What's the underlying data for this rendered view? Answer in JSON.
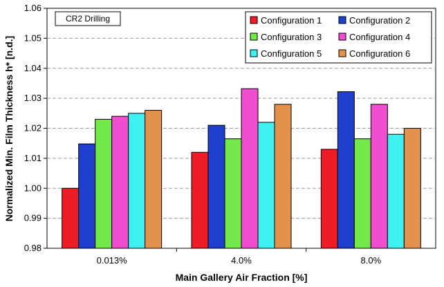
{
  "chart_data": {
    "type": "bar",
    "title": "",
    "annotation": "CR2 Drilling",
    "xlabel": "Main Gallery Air Fraction [%]",
    "ylabel": "Normalized Min. Film Thickness h* [n.d.]",
    "ylim": [
      0.98,
      1.06
    ],
    "yticks": [
      "0.98",
      "0.99",
      "1.00",
      "1.01",
      "1.02",
      "1.03",
      "1.04",
      "1.05",
      "1.06"
    ],
    "categories": [
      "0.013%",
      "4.0%",
      "8.0%"
    ],
    "grid": "horizontal-dashed",
    "legend_position": "top-right",
    "series": [
      {
        "name": "Configuration 1",
        "color": "#ee1c25",
        "values": [
          1.0,
          1.012,
          1.013
        ]
      },
      {
        "name": "Configuration 2",
        "color": "#1f3fcf",
        "values": [
          1.0148,
          1.021,
          1.0322
        ]
      },
      {
        "name": "Configuration 3",
        "color": "#72e84b",
        "values": [
          1.023,
          1.0165,
          1.0165
        ]
      },
      {
        "name": "Configuration 4",
        "color": "#f04dcf",
        "values": [
          1.024,
          1.0332,
          1.028
        ]
      },
      {
        "name": "Configuration 5",
        "color": "#3ff0f0",
        "values": [
          1.025,
          1.022,
          1.018
        ]
      },
      {
        "name": "Configuration 6",
        "color": "#e3924d",
        "values": [
          1.026,
          1.028,
          1.02
        ]
      }
    ]
  }
}
